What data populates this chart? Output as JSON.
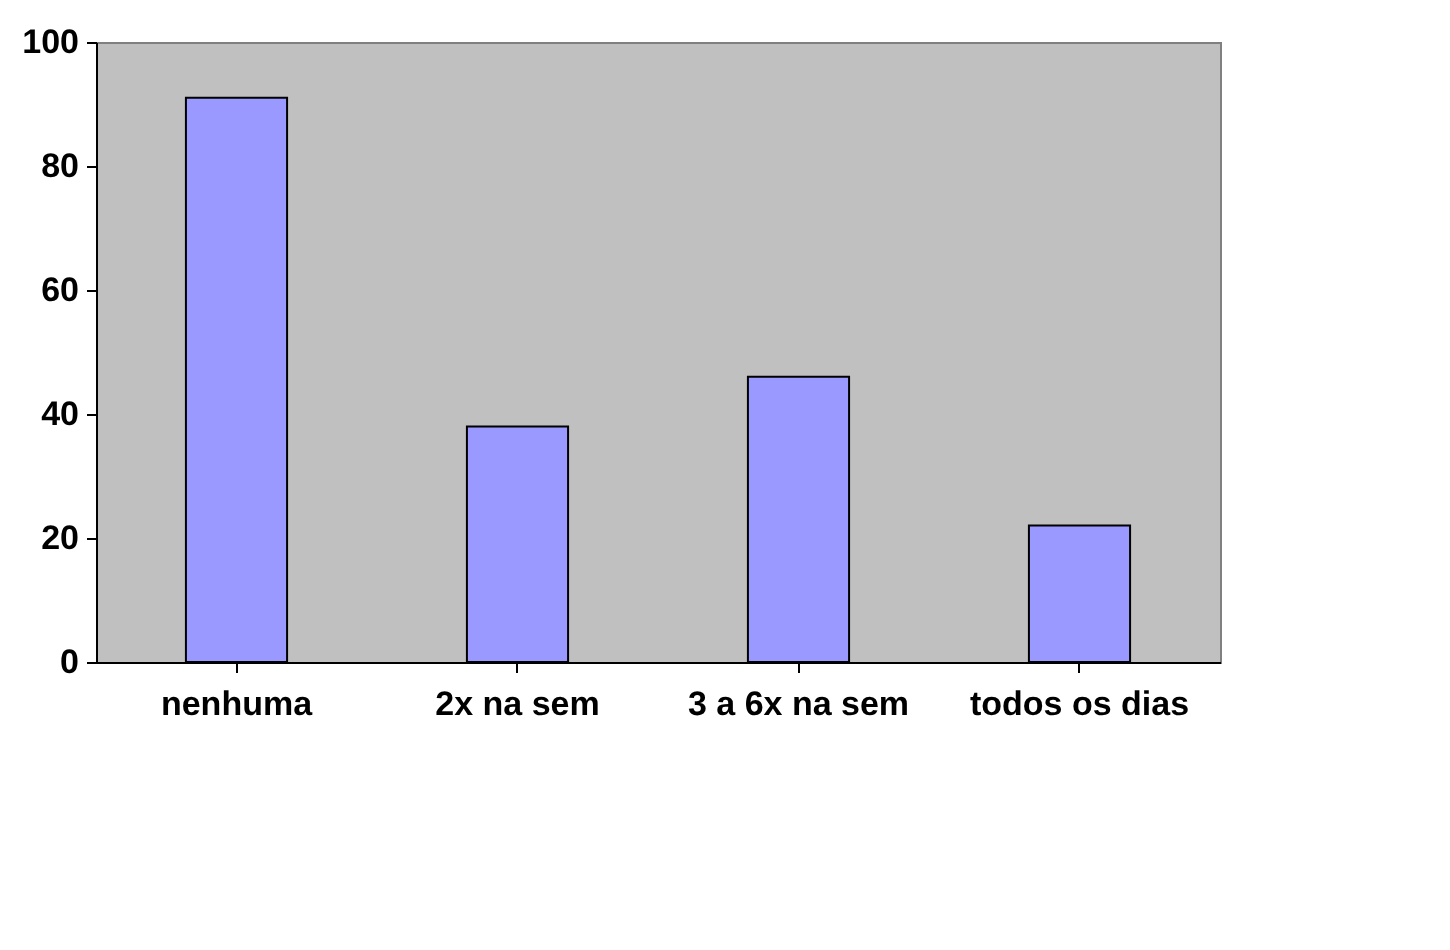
{
  "chart_data": {
    "type": "bar",
    "categories": [
      "nenhuma",
      "2x na sem",
      "3 a 6x na sem",
      "todos os dias"
    ],
    "values": [
      91,
      38,
      46,
      22
    ],
    "color": "#9999ff",
    "ylim": [
      0,
      100
    ],
    "yticks": [
      0,
      20,
      40,
      60,
      80,
      100
    ],
    "grid": false
  }
}
